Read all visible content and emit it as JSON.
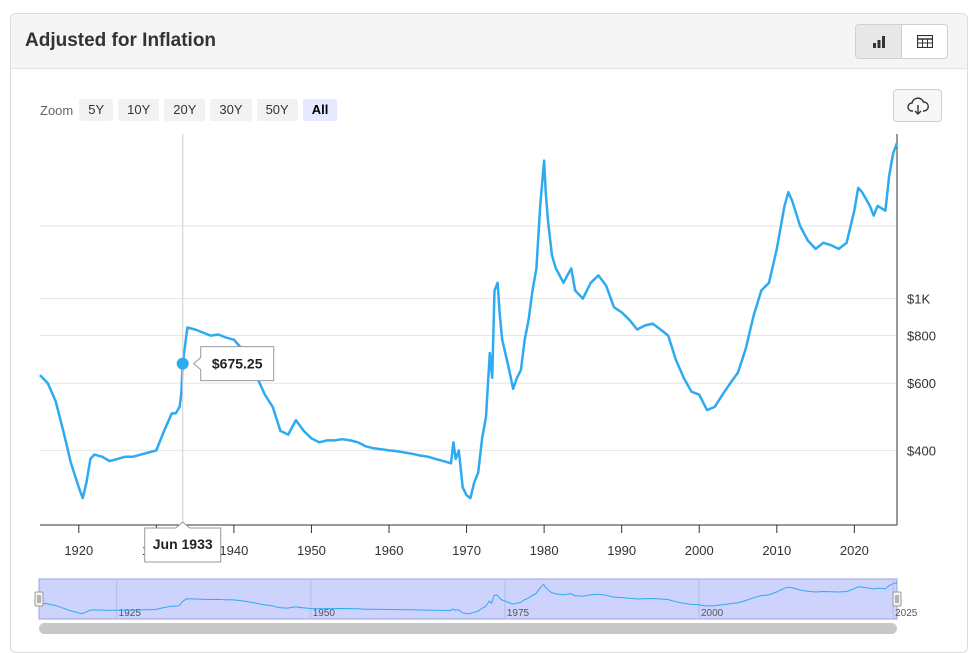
{
  "header": {
    "title": "Adjusted for Inflation",
    "views": [
      {
        "name": "chart",
        "icon": "bar-chart-icon",
        "active": true
      },
      {
        "name": "table",
        "icon": "table-icon",
        "active": false
      }
    ]
  },
  "zoom": {
    "label": "Zoom",
    "options": [
      "5Y",
      "10Y",
      "20Y",
      "30Y",
      "50Y",
      "All"
    ],
    "active": "All"
  },
  "download": {
    "icon": "cloud-download-icon"
  },
  "tooltip": {
    "date": "Jun 1933",
    "value": "$675.25",
    "x": 1933.4,
    "y": 675.25
  },
  "navigator": {
    "labels": [
      "1925",
      "1950",
      "1975",
      "2000",
      "2025"
    ],
    "range": [
      1915,
      2025.5
    ]
  },
  "colors": {
    "line": "#2eaaf0",
    "navigator_fill": "#cdd3fc",
    "navigator_border": "#9aa4d8",
    "scrollbar": "#c8c8c8",
    "grid": "#e6e6e6",
    "crosshair": "#cccccc"
  },
  "chart_data": {
    "type": "line",
    "title": "Adjusted for Inflation",
    "xlabel": "",
    "ylabel": "",
    "y_scale": "log",
    "xlim": [
      1915,
      2025.5
    ],
    "ylim": [
      255,
      2700
    ],
    "x_ticks": [
      "1920",
      "1930",
      "1940",
      "1950",
      "1960",
      "1970",
      "1980",
      "1990",
      "2000",
      "2010",
      "2020"
    ],
    "y_tick_labels": [
      "$400",
      "$600",
      "$800",
      "$1K"
    ],
    "y_tick_values": [
      400,
      600,
      800,
      1000
    ],
    "extra_grid_values": [
      1550
    ],
    "series": [
      {
        "x": [
          1915,
          1916,
          1917,
          1918,
          1919,
          1920,
          1920.5,
          1921,
          1921.5,
          1922,
          1923,
          1924,
          1925,
          1926,
          1927,
          1928,
          1929,
          1930,
          1931,
          1932,
          1932.5,
          1933,
          1933.2,
          1933.4,
          1934,
          1935,
          1936,
          1937,
          1938,
          1939,
          1940,
          1941,
          1942,
          1943,
          1944,
          1945,
          1946,
          1947,
          1948,
          1949,
          1950,
          1951,
          1952,
          1953,
          1954,
          1955,
          1956,
          1957,
          1958,
          1959,
          1960,
          1961,
          1962,
          1963,
          1964,
          1965,
          1966,
          1967,
          1968,
          1968.3,
          1968.6,
          1969,
          1969.5,
          1970,
          1970.5,
          1971,
          1971.5,
          1972,
          1972.5,
          1973,
          1973.3,
          1973.6,
          1974,
          1974.3,
          1974.6,
          1975,
          1975.5,
          1976,
          1976.5,
          1977,
          1977.5,
          1978,
          1978.5,
          1979,
          1979.5,
          1980,
          1980.2,
          1980.5,
          1981,
          1981.5,
          1982,
          1982.5,
          1983,
          1983.5,
          1984,
          1985,
          1986,
          1987,
          1988,
          1989,
          1990,
          1991,
          1992,
          1993,
          1994,
          1995,
          1996,
          1997,
          1998,
          1999,
          2000,
          2001,
          2002,
          2003,
          2004,
          2005,
          2006,
          2007,
          2008,
          2009,
          2010,
          2011,
          2011.5,
          2012,
          2013,
          2014,
          2015,
          2016,
          2017,
          2018,
          2019,
          2020,
          2020.5,
          2021,
          2022,
          2022.5,
          2023,
          2024,
          2024.5,
          2025,
          2025.5
        ],
        "y": [
          630,
          600,
          540,
          450,
          370,
          320,
          300,
          330,
          380,
          390,
          385,
          375,
          380,
          385,
          385,
          390,
          395,
          400,
          450,
          500,
          500,
          520,
          560,
          675.25,
          840,
          830,
          815,
          800,
          805,
          790,
          780,
          740,
          680,
          620,
          560,
          520,
          450,
          440,
          480,
          450,
          430,
          420,
          425,
          425,
          428,
          425,
          420,
          410,
          405,
          403,
          400,
          398,
          395,
          392,
          388,
          385,
          380,
          375,
          370,
          420,
          380,
          400,
          320,
          305,
          300,
          330,
          350,
          430,
          490,
          720,
          620,
          1050,
          1100,
          900,
          780,
          720,
          650,
          580,
          620,
          650,
          780,
          880,
          1050,
          1200,
          1750,
          2300,
          1900,
          1600,
          1300,
          1200,
          1150,
          1100,
          1150,
          1200,
          1050,
          1000,
          1100,
          1150,
          1080,
          950,
          920,
          880,
          830,
          850,
          860,
          830,
          800,
          690,
          620,
          570,
          560,
          510,
          520,
          560,
          600,
          640,
          740,
          900,
          1050,
          1100,
          1350,
          1750,
          1900,
          1800,
          1550,
          1420,
          1350,
          1400,
          1380,
          1350,
          1400,
          1700,
          1950,
          1900,
          1750,
          1650,
          1750,
          1700,
          2100,
          2400,
          2560
        ]
      }
    ]
  }
}
